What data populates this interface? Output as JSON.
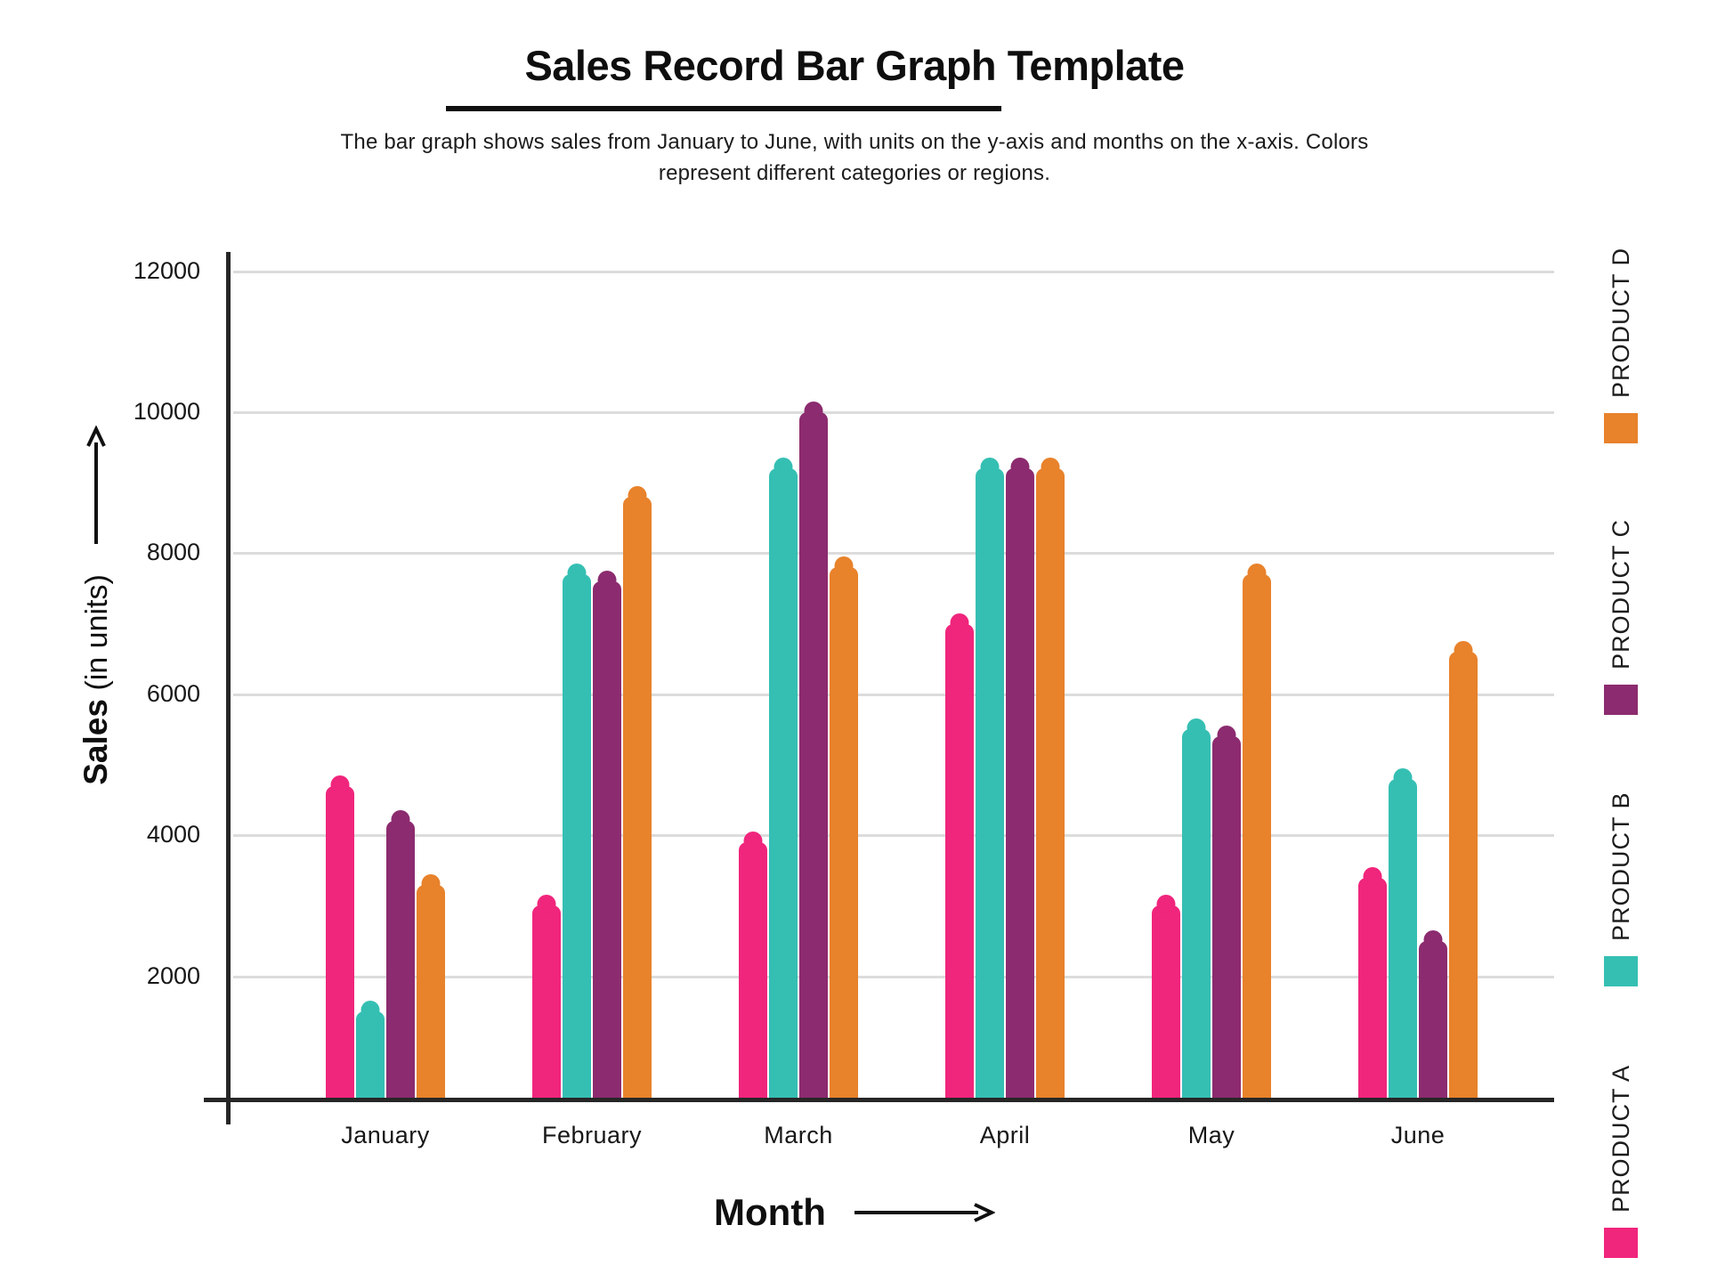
{
  "header": {
    "title": "Sales Record Bar Graph Template",
    "subtitle_line1": "The bar graph shows sales from January to June, with units on the y-axis and months on the x-axis. Colors",
    "subtitle_line2": "represent different categories or regions."
  },
  "y_axis": {
    "label_bold": "Sales",
    "label_units": "(in units)",
    "ticks": [
      12000,
      10000,
      8000,
      6000,
      4000,
      2000
    ]
  },
  "x_axis": {
    "label": "Month"
  },
  "legend": {
    "position": "right",
    "items": [
      {
        "label": "PRODUCT D",
        "color": "#E8822B"
      },
      {
        "label": "PRODUCT C",
        "color": "#8C2B6F"
      },
      {
        "label": "PRODUCT B",
        "color": "#35BFB3"
      },
      {
        "label": "PRODUCT A",
        "color": "#F0257C"
      }
    ]
  },
  "chart_data": {
    "type": "bar",
    "title": "Sales Record Bar Graph Template",
    "categories": [
      "January",
      "February",
      "March",
      "April",
      "May",
      "June"
    ],
    "series": [
      {
        "name": "PRODUCT A",
        "color": "#F0257C",
        "values": [
          4700,
          3000,
          3900,
          7000,
          3000,
          3400
        ]
      },
      {
        "name": "PRODUCT B",
        "color": "#35BFB3",
        "values": [
          1500,
          7700,
          9200,
          9200,
          5500,
          4800
        ]
      },
      {
        "name": "PRODUCT C",
        "color": "#8C2B6F",
        "values": [
          4200,
          7600,
          10000,
          9200,
          5400,
          2500
        ]
      },
      {
        "name": "PRODUCT D",
        "color": "#E8822B",
        "values": [
          3300,
          8800,
          7800,
          9200,
          7700,
          6600
        ]
      }
    ],
    "xlabel": "Month",
    "ylabel": "Sales (in units)",
    "ylim": [
      0,
      12400
    ],
    "yticks": [
      2000,
      4000,
      6000,
      8000,
      10000,
      12000
    ],
    "grid": "horizontal",
    "legend_position": "right",
    "bar_style": "rounded top with center bump"
  },
  "colors": {
    "axis": "#262626",
    "gridline": "#dcdcdc",
    "text": "#161616"
  }
}
